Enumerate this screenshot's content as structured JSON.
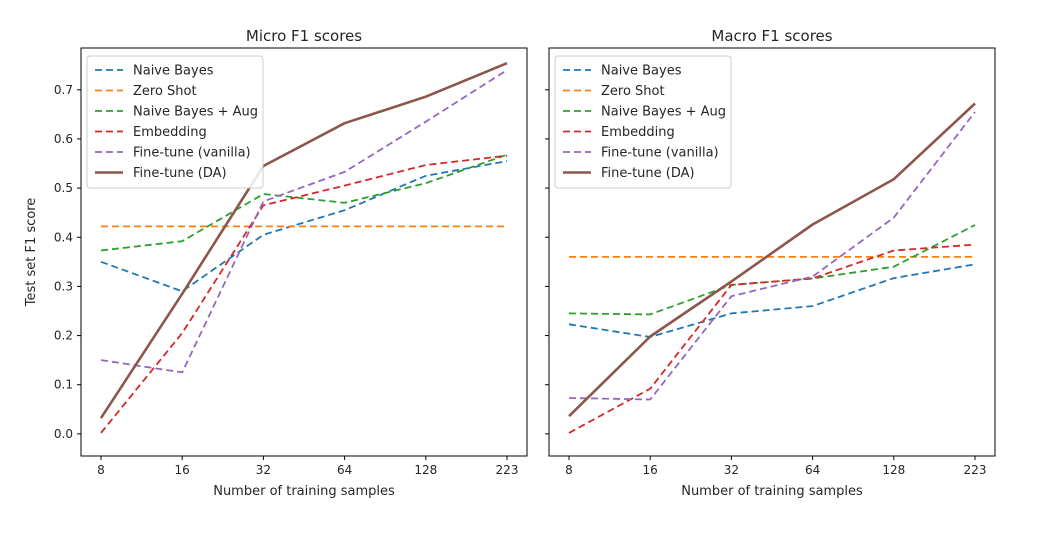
{
  "colors": {
    "naive_bayes": "#1f77b4",
    "zero_shot": "#ff7f0e",
    "naive_bayes_aug": "#2ca02c",
    "embedding": "#d62728",
    "finetune_vanilla": "#9467bd",
    "finetune_da": "#8c564b"
  },
  "chart_data": [
    {
      "type": "line",
      "title": "Micro F1 scores",
      "xlabel": "Number of training samples",
      "ylabel": "Test set F1 score",
      "x": [
        "8",
        "16",
        "32",
        "64",
        "128",
        "223"
      ],
      "yticks": [
        "0.0",
        "0.1",
        "0.2",
        "0.3",
        "0.4",
        "0.5",
        "0.6",
        "0.7"
      ],
      "ylim": [
        -0.045,
        0.785
      ],
      "legend_position": "top-left",
      "series": [
        {
          "name": "Naive Bayes",
          "style": "dashed",
          "color_key": "naive_bayes",
          "values": [
            0.35,
            0.29,
            0.405,
            0.455,
            0.525,
            0.555
          ]
        },
        {
          "name": "Zero Shot",
          "style": "dashed",
          "color_key": "zero_shot",
          "values": [
            0.422,
            0.422,
            0.422,
            0.422,
            0.422,
            0.422
          ]
        },
        {
          "name": "Naive Bayes + Aug",
          "style": "dashed",
          "color_key": "naive_bayes_aug",
          "values": [
            0.373,
            0.392,
            0.488,
            0.47,
            0.51,
            0.568
          ]
        },
        {
          "name": "Embedding",
          "style": "dashed",
          "color_key": "embedding",
          "values": [
            0.002,
            0.205,
            0.465,
            0.505,
            0.547,
            0.566
          ]
        },
        {
          "name": "Fine-tune (vanilla)",
          "style": "dashed",
          "color_key": "finetune_vanilla",
          "values": [
            0.15,
            0.125,
            0.473,
            0.533,
            0.635,
            0.74
          ]
        },
        {
          "name": "Fine-tune (DA)",
          "style": "solid",
          "color_key": "finetune_da",
          "values": [
            0.032,
            0.285,
            0.545,
            0.632,
            0.686,
            0.754
          ]
        }
      ]
    },
    {
      "type": "line",
      "title": "Macro F1 scores",
      "xlabel": "Number of training samples",
      "ylabel": "",
      "x": [
        "8",
        "16",
        "32",
        "64",
        "128",
        "223"
      ],
      "yticks": [],
      "ylim": [
        -0.045,
        0.785
      ],
      "legend_position": "top-left",
      "series": [
        {
          "name": "Naive Bayes",
          "style": "dashed",
          "color_key": "naive_bayes",
          "values": [
            0.223,
            0.197,
            0.245,
            0.26,
            0.317,
            0.345
          ]
        },
        {
          "name": "Zero Shot",
          "style": "dashed",
          "color_key": "zero_shot",
          "values": [
            0.36,
            0.36,
            0.36,
            0.36,
            0.36,
            0.36
          ]
        },
        {
          "name": "Naive Bayes + Aug",
          "style": "dashed",
          "color_key": "naive_bayes_aug",
          "values": [
            0.245,
            0.243,
            0.303,
            0.316,
            0.34,
            0.425
          ]
        },
        {
          "name": "Embedding",
          "style": "dashed",
          "color_key": "embedding",
          "values": [
            0.002,
            0.092,
            0.303,
            0.316,
            0.373,
            0.385
          ]
        },
        {
          "name": "Fine-tune (vanilla)",
          "style": "dashed",
          "color_key": "finetune_vanilla",
          "values": [
            0.073,
            0.07,
            0.28,
            0.32,
            0.44,
            0.655
          ]
        },
        {
          "name": "Fine-tune (DA)",
          "style": "solid",
          "color_key": "finetune_da",
          "values": [
            0.036,
            0.198,
            0.31,
            0.426,
            0.518,
            0.672
          ]
        }
      ]
    }
  ]
}
